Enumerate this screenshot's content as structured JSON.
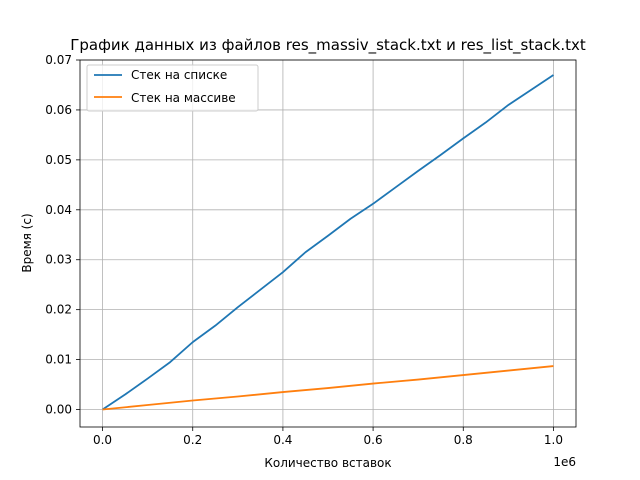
{
  "chart_data": {
    "type": "line",
    "title": "График данных из файлов res_massiv_stack.txt и res_list_stack.txt",
    "xlabel": "Количество вставок",
    "ylabel": "Время (с)",
    "x_offset_label": "1e6",
    "xlim": [
      -50000,
      1050000
    ],
    "ylim": [
      -0.0035,
      0.07
    ],
    "x_ticks": [
      0.0,
      200000,
      400000,
      600000,
      800000,
      1000000
    ],
    "x_tick_labels": [
      "0.0",
      "0.2",
      "0.4",
      "0.6",
      "0.8",
      "1.0"
    ],
    "y_ticks": [
      0.0,
      0.01,
      0.02,
      0.03,
      0.04,
      0.05,
      0.06,
      0.07
    ],
    "y_tick_labels": [
      "0.00",
      "0.01",
      "0.02",
      "0.03",
      "0.04",
      "0.05",
      "0.06",
      "0.07"
    ],
    "grid": true,
    "legend_position": "top-left",
    "series": [
      {
        "name": "Стек на списке",
        "color": "#1f77b4",
        "x": [
          0,
          50000,
          100000,
          150000,
          200000,
          250000,
          300000,
          350000,
          400000,
          450000,
          500000,
          550000,
          600000,
          650000,
          700000,
          750000,
          800000,
          850000,
          900000,
          950000,
          1000000
        ],
        "y": [
          0.0,
          0.003,
          0.0062,
          0.0095,
          0.0135,
          0.0168,
          0.0205,
          0.024,
          0.0275,
          0.0315,
          0.0348,
          0.0382,
          0.0412,
          0.0445,
          0.0478,
          0.051,
          0.0543,
          0.0575,
          0.061,
          0.064,
          0.067
        ]
      },
      {
        "name": "Стек на массиве",
        "color": "#ff7f0e",
        "x": [
          0,
          100000,
          200000,
          300000,
          400000,
          500000,
          600000,
          700000,
          800000,
          900000,
          1000000
        ],
        "y": [
          0.0,
          0.0009,
          0.0018,
          0.0026,
          0.0035,
          0.0043,
          0.0052,
          0.006,
          0.0069,
          0.0078,
          0.0087
        ]
      }
    ]
  }
}
